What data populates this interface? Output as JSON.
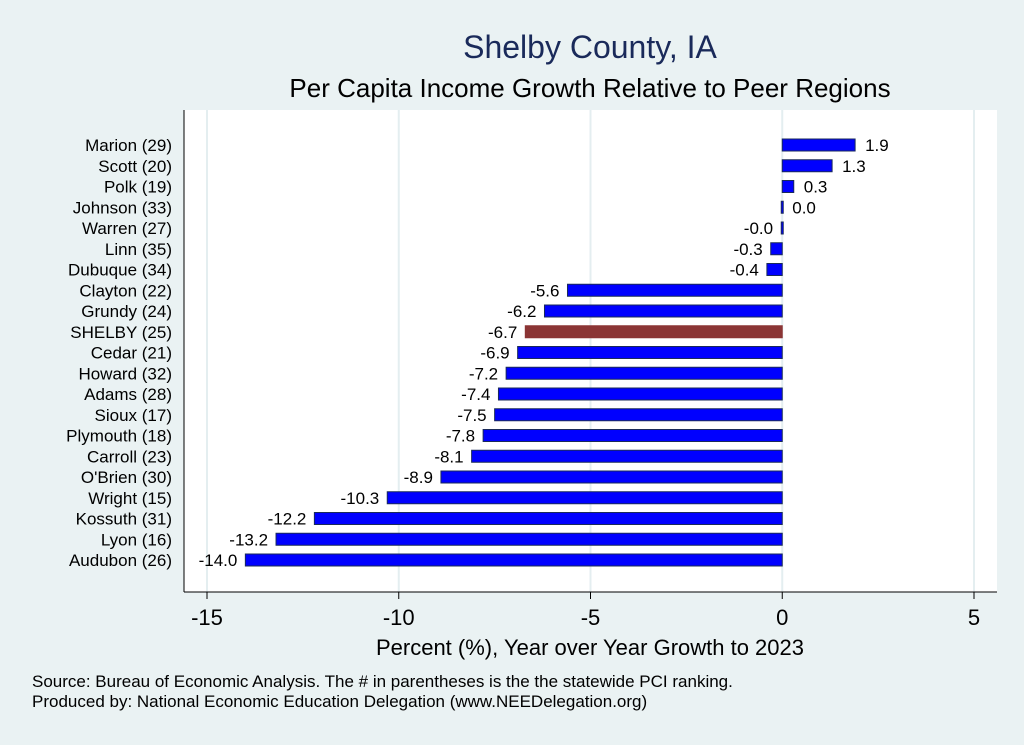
{
  "chart_data": {
    "type": "bar",
    "orientation": "horizontal",
    "title": "Shelby County, IA",
    "subtitle": "Per Capita Income Growth Relative to Peer Regions",
    "xlabel": "Percent (%), Year over Year Growth to 2023",
    "ylabel": "",
    "xlim": [
      -15.6,
      5.6
    ],
    "xticks": [
      -15,
      -10,
      -5,
      0,
      5
    ],
    "xtick_labels": [
      "-15",
      "-10",
      "-5",
      "0",
      "5"
    ],
    "grid": true,
    "highlight_category": "SHELBY (25)",
    "colors": {
      "bar": "#0000ff",
      "highlight": "#8b3535",
      "bar_edge": "#1a2a5a",
      "plot_bg": "#ffffff",
      "page_bg": "#eaf2f3",
      "grid": "#e4eef0"
    },
    "categories": [
      "Marion (29)",
      "Scott (20)",
      "Polk (19)",
      "Johnson (33)",
      "Warren (27)",
      "Linn (35)",
      "Dubuque (34)",
      "Clayton (22)",
      "Grundy (24)",
      "SHELBY (25)",
      "Cedar (21)",
      "Howard (32)",
      "Adams (28)",
      "Sioux (17)",
      "Plymouth (18)",
      "Carroll (23)",
      "O'Brien (30)",
      "Wright (15)",
      "Kossuth (31)",
      "Lyon (16)",
      "Audubon (26)"
    ],
    "values": [
      1.9,
      1.3,
      0.3,
      0.0,
      -0.03,
      -0.3,
      -0.4,
      -5.6,
      -6.2,
      -6.7,
      -6.9,
      -7.2,
      -7.4,
      -7.5,
      -7.8,
      -8.1,
      -8.9,
      -10.3,
      -12.2,
      -13.2,
      -14.0
    ],
    "value_labels": [
      "1.9",
      "1.3",
      "0.3",
      "0.0",
      "-0.0",
      "-0.3",
      "-0.4",
      "-5.6",
      "-6.2",
      "-6.7",
      "-6.9",
      "-7.2",
      "-7.4",
      "-7.5",
      "-7.8",
      "-8.1",
      "-8.9",
      "-10.3",
      "-12.2",
      "-13.2",
      "-14.0"
    ]
  },
  "footer": {
    "source": "Source: Bureau of Economic Analysis. The # in parentheses is the the statewide PCI ranking.",
    "produced_by": "Produced by: National Economic Education Delegation (www.NEEDelegation.org)"
  }
}
